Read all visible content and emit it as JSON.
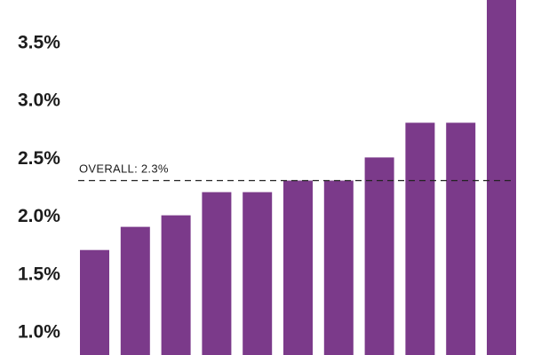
{
  "chart_data": {
    "type": "bar",
    "title": "",
    "xlabel": "",
    "ylabel": "",
    "bar_color": "#7b3a8a",
    "y_ticks": [
      {
        "value": 1.0,
        "label": "1.0%"
      },
      {
        "value": 1.5,
        "label": "1.5%"
      },
      {
        "value": 2.0,
        "label": "2.0%"
      },
      {
        "value": 2.5,
        "label": "2.5%"
      },
      {
        "value": 3.0,
        "label": "3.0%"
      },
      {
        "value": 3.5,
        "label": "3.5%"
      }
    ],
    "ylim": [
      0.8,
      3.85
    ],
    "values": [
      1.7,
      1.9,
      2.0,
      2.2,
      2.2,
      2.3,
      2.3,
      2.5,
      2.8,
      2.8,
      4.0
    ],
    "reference_line": {
      "value": 2.3,
      "label": "OVERALL: 2.3%"
    }
  }
}
